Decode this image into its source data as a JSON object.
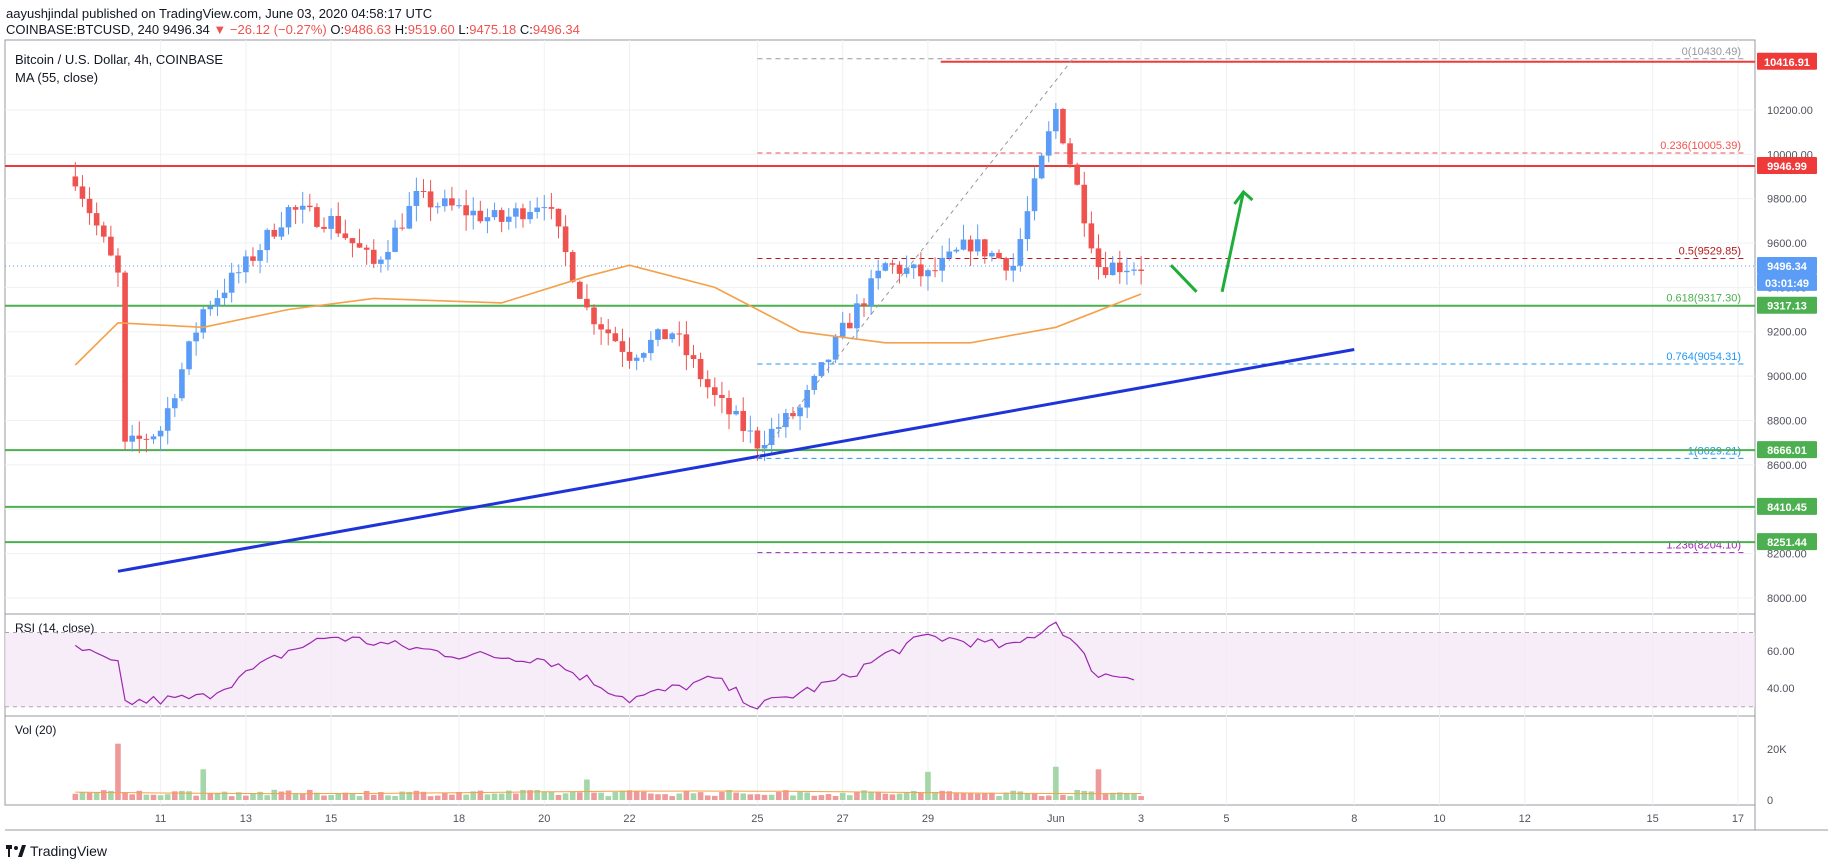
{
  "header": {
    "published": "aayushjindal published on TradingView.com, June 03, 2020 04:58:17 UTC",
    "symbol": "COINBASE:BTCUSD, 240",
    "last": "9496.34",
    "change": "−26.12 (−0.27%)",
    "ohlc": [
      {
        "k": "O:",
        "v": "9486.63"
      },
      {
        "k": "H:",
        "v": "9519.60"
      },
      {
        "k": "L:",
        "v": "9475.18"
      },
      {
        "k": "C:",
        "v": "9496.34"
      }
    ]
  },
  "footer": {
    "brand": "TradingView"
  },
  "colors": {
    "up": "#5b9cf6",
    "down": "#ef5350",
    "ma": "#f5a04a",
    "trend": "#1e34d8",
    "support": "#4caf50",
    "resistance": "#ef3a3a",
    "rsi": "#9c27b0",
    "arrow": "#1fad3a"
  },
  "chart_data": [
    {
      "type": "candlestick",
      "title": "Bitcoin / U.S. Dollar, 4h, COINBASE",
      "indicator": "MA (55, close)",
      "x_ticks": [
        "11",
        "13",
        "15",
        "18",
        "20",
        "22",
        "25",
        "27",
        "29",
        "Jun",
        "3",
        "5",
        "8",
        "10",
        "12",
        "15",
        "17"
      ],
      "y_ticks": [
        8000,
        8200,
        8400,
        8600,
        8800,
        9000,
        9200,
        9400,
        9600,
        9800,
        10000,
        10200
      ],
      "y_tick_labels": [
        "8000.00",
        "8200.00",
        "8400.00",
        "8600.00",
        "8800.00",
        "9000.00",
        "9200.00",
        "9400.00",
        "9600.00",
        "9800.00",
        "10000.00",
        "10200.00"
      ],
      "ylim": [
        7950,
        10470
      ],
      "price_path": [
        [
          "May 9",
          9900
        ],
        [
          "May 10",
          9450
        ],
        [
          "May 10",
          8660
        ],
        [
          "May 11",
          8760
        ],
        [
          "May 12",
          9300
        ],
        [
          "May 13",
          9500
        ],
        [
          "May 14",
          9750
        ],
        [
          "May 15",
          9700
        ],
        [
          "May 16",
          9500
        ],
        [
          "May 17",
          9800
        ],
        [
          "May 18",
          9750
        ],
        [
          "May 19",
          9700
        ],
        [
          "May 20",
          9800
        ],
        [
          "May 21",
          9300
        ],
        [
          "May 22",
          9100
        ],
        [
          "May 23",
          9200
        ],
        [
          "May 24",
          8900
        ],
        [
          "May 25",
          8700
        ],
        [
          "May 26",
          8850
        ],
        [
          "May 27",
          9200
        ],
        [
          "May 28",
          9500
        ],
        [
          "May 29",
          9450
        ],
        [
          "May 30",
          9600
        ],
        [
          "May 31",
          9500
        ],
        [
          "Jun 1",
          10200
        ],
        [
          "Jun 2",
          9500
        ],
        [
          "Jun 3",
          9496
        ]
      ],
      "ma55_path": [
        [
          "May 9",
          9050
        ],
        [
          "May 10",
          9240
        ],
        [
          "May 12",
          9220
        ],
        [
          "May 14",
          9300
        ],
        [
          "May 16",
          9350
        ],
        [
          "May 19",
          9330
        ],
        [
          "May 21",
          9450
        ],
        [
          "May 22",
          9500
        ],
        [
          "May 24",
          9400
        ],
        [
          "May 26",
          9200
        ],
        [
          "May 28",
          9150
        ],
        [
          "May 30",
          9150
        ],
        [
          "Jun 1",
          9220
        ],
        [
          "Jun 3",
          9370
        ]
      ],
      "levels": [
        {
          "label": "10416.91",
          "value": 10416.91,
          "kind": "resistance"
        },
        {
          "label": "9946.99",
          "value": 9946.99,
          "kind": "resistance"
        },
        {
          "label": "9496.34",
          "value": 9496.34,
          "kind": "last"
        },
        {
          "label": "03:01:49",
          "value": 9420,
          "kind": "countdown"
        },
        {
          "label": "9317.13",
          "value": 9317.13,
          "kind": "support"
        },
        {
          "label": "8666.01",
          "value": 8666.01,
          "kind": "support"
        },
        {
          "label": "8410.45",
          "value": 8410.45,
          "kind": "support"
        },
        {
          "label": "8251.44",
          "value": 8251.44,
          "kind": "support"
        }
      ],
      "fibonacci": [
        {
          "label": "0(10430.49)",
          "value": 10430.49
        },
        {
          "label": "0.236(10005.39)",
          "value": 10005.39
        },
        {
          "label": "0.5(9529.85)",
          "value": 9529.85
        },
        {
          "label": "0.618(9317.30)",
          "value": 9317.3
        },
        {
          "label": "0.764(9054.31)",
          "value": 9054.31
        },
        {
          "label": "1(8629.21)",
          "value": 8629.21
        },
        {
          "label": "1.236(8204.10)",
          "value": 8204.1
        }
      ],
      "trendline": [
        [
          "May 10",
          8120
        ],
        [
          "Jun 8",
          9120
        ]
      ]
    },
    {
      "type": "line",
      "title": "RSI (14, close)",
      "y_ticks": [
        40,
        60
      ],
      "y_tick_labels": [
        "40.00",
        "60.00"
      ],
      "band": [
        30,
        70
      ],
      "ylim": [
        25,
        80
      ],
      "values_path": [
        [
          "May 9",
          62
        ],
        [
          "May 10",
          52
        ],
        [
          "May 10",
          32
        ],
        [
          "May 12",
          35
        ],
        [
          "May 14",
          60
        ],
        [
          "May 15",
          68
        ],
        [
          "May 18",
          58
        ],
        [
          "May 20",
          56
        ],
        [
          "May 22",
          34
        ],
        [
          "May 24",
          45
        ],
        [
          "May 25",
          30
        ],
        [
          "May 27",
          45
        ],
        [
          "May 28",
          58
        ],
        [
          "May 29",
          68
        ],
        [
          "May 31",
          62
        ],
        [
          "Jun 1",
          76
        ],
        [
          "Jun 2",
          47
        ],
        [
          "Jun 3",
          47
        ]
      ]
    },
    {
      "type": "bar",
      "title": "Vol (20)",
      "y_ticks": [
        0,
        20000
      ],
      "y_tick_labels": [
        "0",
        "20K"
      ],
      "ylim": [
        0,
        25000
      ],
      "notable": [
        {
          "x": "May 10",
          "value": 22000
        },
        {
          "x": "May 12",
          "value": 12000
        },
        {
          "x": "May 21",
          "value": 8000
        },
        {
          "x": "May 29",
          "value": 11000
        },
        {
          "x": "Jun 1",
          "value": 13000
        },
        {
          "x": "Jun 2",
          "value": 12000
        }
      ]
    }
  ]
}
